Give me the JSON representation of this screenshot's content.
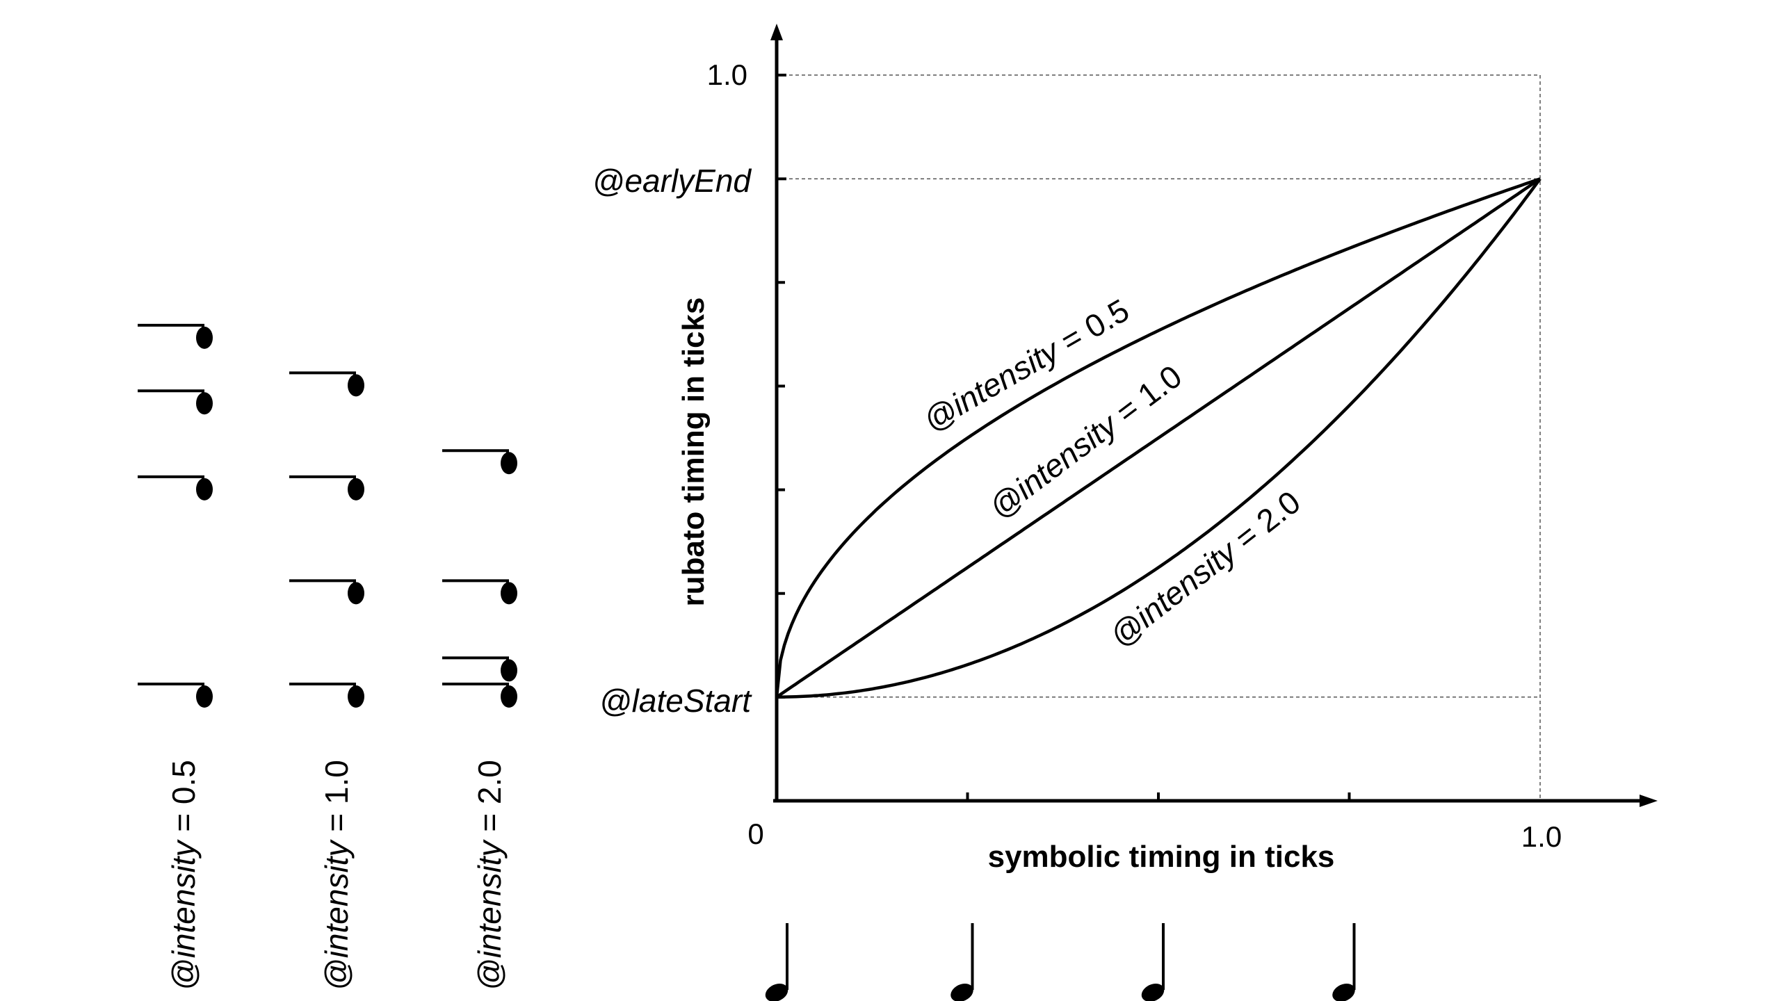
{
  "axes": {
    "x_label": "symbolic timing in ticks",
    "y_label": "rubato timing in ticks",
    "x_tick_labels": [
      "0",
      "1.0"
    ],
    "y_tick_labels": [
      "1.0"
    ],
    "y_markers": {
      "earlyEnd": "@earlyEnd",
      "lateStart": "@lateStart"
    }
  },
  "curves": [
    {
      "label_prefix": "@intensity",
      "label_suffix": " = 0.5",
      "intensity": 0.5
    },
    {
      "label_prefix": "@intensity",
      "label_suffix": " = 1.0",
      "intensity": 1.0
    },
    {
      "label_prefix": "@intensity",
      "label_suffix": " = 2.0",
      "intensity": 2.0
    }
  ],
  "note_columns": [
    {
      "label_prefix": "@intensity",
      "label_suffix": " = 0.5"
    },
    {
      "label_prefix": "@intensity",
      "label_suffix": " = 1.0"
    },
    {
      "label_prefix": "@intensity",
      "label_suffix": " = 2.0"
    }
  ],
  "chart_data": {
    "type": "line",
    "title": "",
    "xlabel": "symbolic timing in ticks",
    "ylabel": "rubato timing in ticks",
    "xlim": [
      0,
      1.0
    ],
    "ylim": [
      0,
      1.0
    ],
    "lateStart": 0.143,
    "earlyEnd": 0.857,
    "series": [
      {
        "name": "@intensity = 0.5",
        "x": [
          0,
          0.25,
          0.5,
          0.75,
          1.0
        ],
        "y": [
          0.143,
          0.5,
          0.648,
          0.761,
          0.857
        ]
      },
      {
        "name": "@intensity = 1.0",
        "x": [
          0,
          0.25,
          0.5,
          0.75,
          1.0
        ],
        "y": [
          0.143,
          0.321,
          0.5,
          0.679,
          0.857
        ]
      },
      {
        "name": "@intensity = 2.0",
        "x": [
          0,
          0.25,
          0.5,
          0.75,
          1.0
        ],
        "y": [
          0.143,
          0.188,
          0.321,
          0.545,
          0.857
        ]
      }
    ],
    "note_positions": {
      "x": [
        0,
        0.25,
        0.5,
        0.75
      ],
      "intensity_0.5": [
        0.143,
        0.5,
        0.648,
        0.761
      ],
      "intensity_1.0": [
        0.143,
        0.321,
        0.5,
        0.679
      ],
      "intensity_2.0": [
        0.143,
        0.188,
        0.321,
        0.545
      ]
    }
  }
}
